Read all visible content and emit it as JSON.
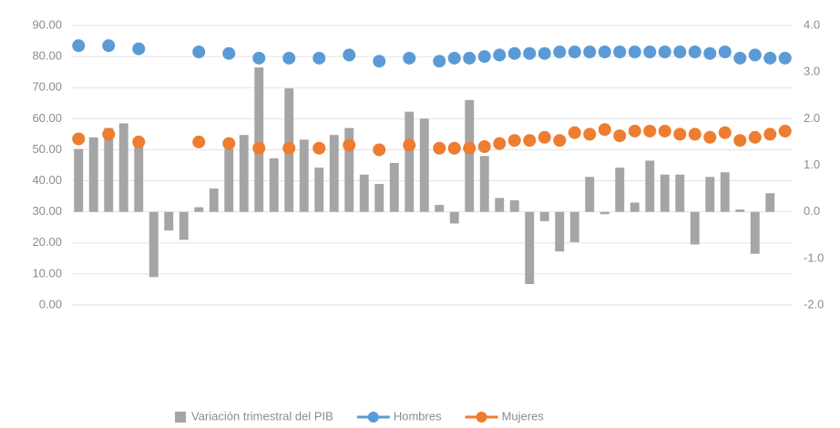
{
  "chart_data": {
    "type": "combo",
    "categories": [
      null,
      null,
      null,
      null,
      null,
      null,
      null,
      null,
      null,
      null,
      null,
      null,
      null,
      null,
      null,
      null,
      null,
      null,
      null,
      null,
      null,
      null,
      null,
      null,
      null,
      null,
      null,
      null,
      null,
      null,
      null,
      null,
      null,
      null,
      null,
      null,
      null,
      null,
      null,
      null,
      null,
      null,
      null,
      null,
      null,
      null,
      null,
      null
    ],
    "series": [
      {
        "name": "Variación trimestral del PIB",
        "type": "bar",
        "axis": "y2",
        "color": "#a5a5a5",
        "values": [
          1.35,
          1.6,
          1.8,
          1.9,
          1.55,
          -1.4,
          -0.4,
          -0.6,
          0.1,
          0.5,
          1.35,
          1.65,
          3.1,
          1.15,
          2.65,
          1.55,
          0.95,
          1.65,
          1.8,
          0.8,
          0.6,
          1.05,
          2.15,
          2.0,
          0.15,
          -0.25,
          2.4,
          1.2,
          0.3,
          0.25,
          -1.55,
          -0.2,
          -0.85,
          -0.65,
          0.75,
          -0.05,
          0.95,
          0.2,
          1.1,
          0.8,
          0.8,
          -0.7,
          0.75,
          0.85,
          0.05,
          -0.9,
          0.4,
          null
        ]
      },
      {
        "name": "Hombres",
        "type": "scatter",
        "color": "#5b9bd5",
        "values": [
          83.5,
          null,
          83.5,
          null,
          82.5,
          null,
          null,
          null,
          81.5,
          null,
          81,
          null,
          79.5,
          null,
          79.5,
          null,
          79.5,
          null,
          80.5,
          null,
          78.5,
          null,
          79.5,
          null,
          78.5,
          79.5,
          79.5,
          80,
          80.5,
          81,
          81,
          81,
          81.5,
          81.5,
          81.5,
          81.5,
          81.5,
          81.5,
          81.5,
          81.5,
          81.5,
          81.5,
          81,
          81.5,
          79.5,
          80.5,
          79.5,
          79.5
        ]
      },
      {
        "name": "Mujeres",
        "type": "scatter",
        "color": "#ed7d31",
        "values": [
          53.5,
          null,
          55,
          null,
          52.5,
          null,
          null,
          null,
          52.5,
          null,
          52,
          null,
          50.5,
          null,
          50.5,
          null,
          50.5,
          null,
          51.5,
          null,
          50,
          null,
          51.5,
          null,
          50.5,
          50.5,
          50.5,
          51,
          52,
          53,
          53,
          54,
          53,
          55.5,
          55,
          56.5,
          54.5,
          56,
          56,
          56,
          55,
          55,
          54,
          55.5,
          53,
          54,
          55,
          56
        ]
      }
    ],
    "ylim": [
      0,
      90
    ],
    "yticks": [
      {
        "value": 0,
        "label": "0.00"
      },
      {
        "value": 10,
        "label": "10.00"
      },
      {
        "value": 20,
        "label": "20.00"
      },
      {
        "value": 30,
        "label": "30.00"
      },
      {
        "value": 40,
        "label": "40.00"
      },
      {
        "value": 50,
        "label": "50.00"
      },
      {
        "value": 60,
        "label": "60.00"
      },
      {
        "value": 70,
        "label": "70.00"
      },
      {
        "value": 80,
        "label": "80.00"
      },
      {
        "value": 90,
        "label": "90.00"
      }
    ],
    "y2lim": [
      -2,
      4
    ],
    "y2ticks": [
      {
        "value": -2,
        "label": "-2.0"
      },
      {
        "value": -1,
        "label": "-1.0"
      },
      {
        "value": 0,
        "label": "0.0"
      },
      {
        "value": 1,
        "label": "1.0"
      },
      {
        "value": 2,
        "label": "2.0"
      },
      {
        "value": 3,
        "label": "3.0"
      },
      {
        "value": 4,
        "label": "4.0"
      }
    ],
    "grid": true,
    "legend": "bottom"
  }
}
